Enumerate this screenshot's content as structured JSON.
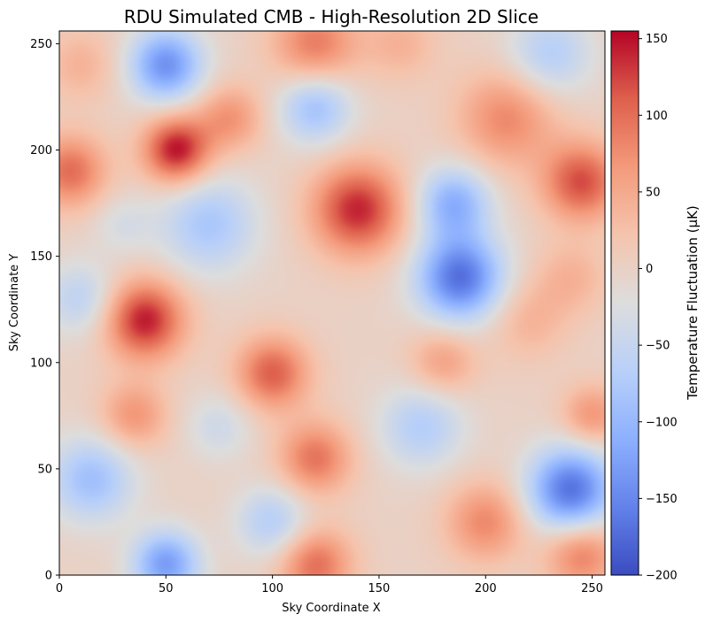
{
  "chart_data": {
    "type": "heatmap",
    "title": "RDU Simulated CMB - High-Resolution 2D Slice",
    "xlabel": "Sky Coordinate X",
    "ylabel": "Sky Coordinate Y",
    "xlim": [
      0,
      256
    ],
    "ylim": [
      0,
      256
    ],
    "x_ticks": [
      0,
      50,
      100,
      150,
      200,
      250
    ],
    "y_ticks": [
      0,
      50,
      100,
      150,
      200,
      250
    ],
    "colorbar": {
      "label": "Temperature Fluctuation (μK)",
      "range": [
        -200,
        155
      ],
      "ticks": [
        150,
        100,
        50,
        0,
        -50,
        -100,
        -150,
        -200
      ],
      "colormap": "coolwarm"
    },
    "blobs": [
      {
        "x": 50,
        "y": 240,
        "value": -140,
        "radius": 12
      },
      {
        "x": 55,
        "y": 200,
        "value": 150,
        "radius": 11
      },
      {
        "x": 5,
        "y": 190,
        "value": 100,
        "radius": 12
      },
      {
        "x": 140,
        "y": 172,
        "value": 140,
        "radius": 15
      },
      {
        "x": 120,
        "y": 250,
        "value": 90,
        "radius": 14
      },
      {
        "x": 188,
        "y": 140,
        "value": -170,
        "radius": 14
      },
      {
        "x": 185,
        "y": 175,
        "value": -110,
        "radius": 12
      },
      {
        "x": 40,
        "y": 120,
        "value": 145,
        "radius": 13
      },
      {
        "x": 100,
        "y": 95,
        "value": 110,
        "radius": 12
      },
      {
        "x": 120,
        "y": 55,
        "value": 95,
        "radius": 12
      },
      {
        "x": 240,
        "y": 40,
        "value": -170,
        "radius": 14
      },
      {
        "x": 245,
        "y": 185,
        "value": 120,
        "radius": 13
      },
      {
        "x": 210,
        "y": 215,
        "value": 80,
        "radius": 16
      },
      {
        "x": 70,
        "y": 165,
        "value": -80,
        "radius": 16
      },
      {
        "x": 120,
        "y": 220,
        "value": -90,
        "radius": 12
      },
      {
        "x": 15,
        "y": 45,
        "value": -90,
        "radius": 14
      },
      {
        "x": 50,
        "y": 5,
        "value": -130,
        "radius": 11
      },
      {
        "x": 120,
        "y": 5,
        "value": 100,
        "radius": 12
      },
      {
        "x": 200,
        "y": 25,
        "value": 80,
        "radius": 13
      },
      {
        "x": 245,
        "y": 10,
        "value": 90,
        "radius": 12
      },
      {
        "x": 170,
        "y": 70,
        "value": -70,
        "radius": 14
      },
      {
        "x": 10,
        "y": 130,
        "value": -60,
        "radius": 12
      },
      {
        "x": 75,
        "y": 70,
        "value": -40,
        "radius": 11
      },
      {
        "x": 35,
        "y": 75,
        "value": 70,
        "radius": 11
      },
      {
        "x": 230,
        "y": 245,
        "value": -70,
        "radius": 14
      },
      {
        "x": 180,
        "y": 100,
        "value": 60,
        "radius": 11
      },
      {
        "x": 100,
        "y": 25,
        "value": -70,
        "radius": 12
      },
      {
        "x": 220,
        "y": 120,
        "value": 40,
        "radius": 13
      },
      {
        "x": 10,
        "y": 240,
        "value": 40,
        "radius": 12
      },
      {
        "x": 80,
        "y": 215,
        "value": 70,
        "radius": 11
      },
      {
        "x": 250,
        "y": 75,
        "value": 70,
        "radius": 10
      },
      {
        "x": 30,
        "y": 165,
        "value": -30,
        "radius": 10
      },
      {
        "x": 160,
        "y": 250,
        "value": 40,
        "radius": 12
      },
      {
        "x": 240,
        "y": 140,
        "value": 40,
        "radius": 12
      }
    ]
  }
}
